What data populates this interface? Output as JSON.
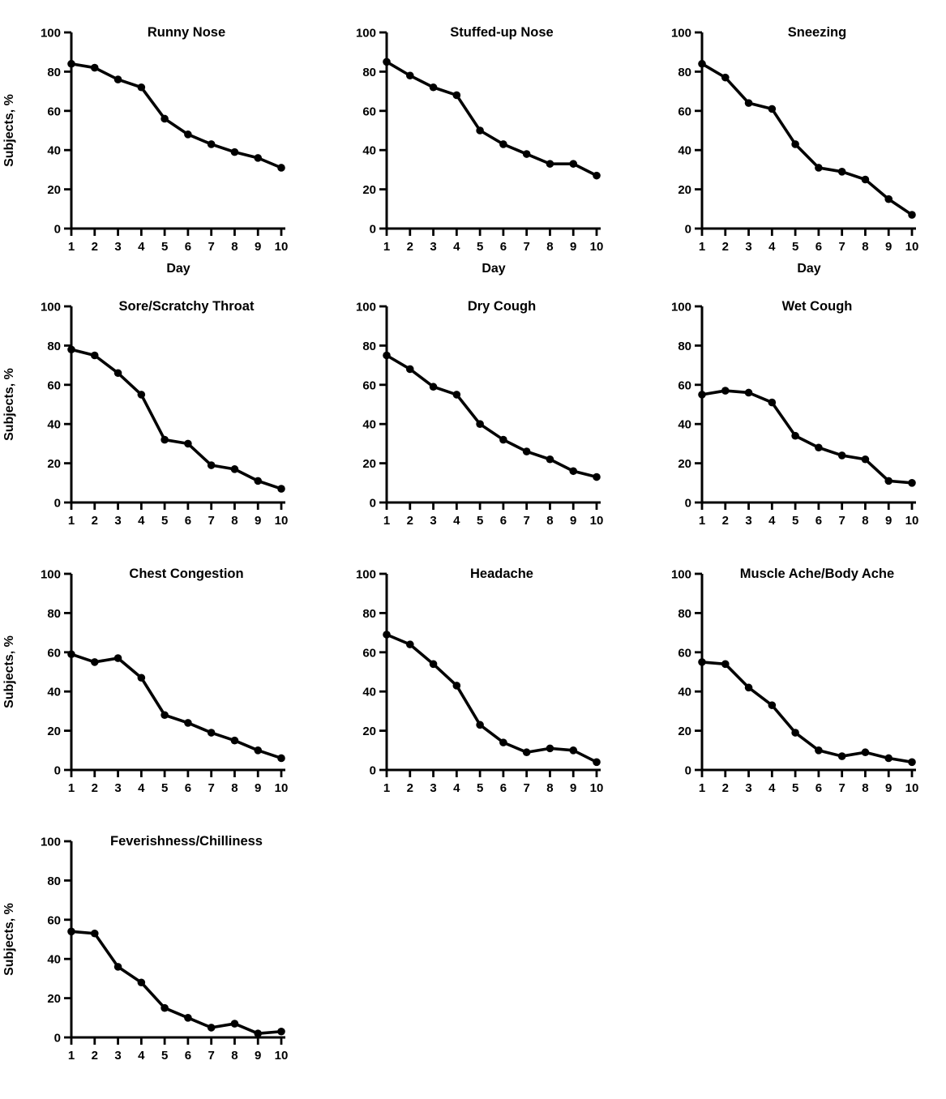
{
  "style": {
    "ink": "#000000",
    "background": "#ffffff"
  },
  "chart_data": [
    {
      "type": "line",
      "title": "Runny Nose",
      "xlabel": "Day",
      "ylabel": "Subjects, %",
      "x": [
        1,
        2,
        3,
        4,
        5,
        6,
        7,
        8,
        9,
        10
      ],
      "values": [
        84,
        82,
        76,
        72,
        56,
        48,
        43,
        39,
        36,
        31
      ],
      "ylim": [
        0,
        100
      ],
      "y_ticks": [
        0,
        20,
        40,
        60,
        80,
        100
      ],
      "grid": false,
      "marker": "circle"
    },
    {
      "type": "line",
      "title": "Stuffed-up Nose",
      "xlabel": "Day",
      "ylabel": "",
      "x": [
        1,
        2,
        3,
        4,
        5,
        6,
        7,
        8,
        9,
        10
      ],
      "values": [
        85,
        78,
        72,
        68,
        50,
        43,
        38,
        33,
        33,
        27
      ],
      "ylim": [
        0,
        100
      ],
      "y_ticks": [
        0,
        20,
        40,
        60,
        80,
        100
      ],
      "grid": false,
      "marker": "circle"
    },
    {
      "type": "line",
      "title": "Sneezing",
      "xlabel": "Day",
      "ylabel": "",
      "x": [
        1,
        2,
        3,
        4,
        5,
        6,
        7,
        8,
        9,
        10
      ],
      "values": [
        84,
        77,
        64,
        61,
        43,
        31,
        29,
        25,
        15,
        7
      ],
      "ylim": [
        0,
        100
      ],
      "y_ticks": [
        0,
        20,
        40,
        60,
        80,
        100
      ],
      "grid": false,
      "marker": "circle"
    },
    {
      "type": "line",
      "title": "Sore/Scratchy Throat",
      "xlabel": "",
      "ylabel": "Subjects, %",
      "x": [
        1,
        2,
        3,
        4,
        5,
        6,
        7,
        8,
        9,
        10
      ],
      "values": [
        78,
        75,
        66,
        55,
        32,
        30,
        19,
        17,
        11,
        7
      ],
      "ylim": [
        0,
        100
      ],
      "y_ticks": [
        0,
        20,
        40,
        60,
        80,
        100
      ],
      "grid": false,
      "marker": "circle"
    },
    {
      "type": "line",
      "title": "Dry Cough",
      "xlabel": "",
      "ylabel": "",
      "x": [
        1,
        2,
        3,
        4,
        5,
        6,
        7,
        8,
        9,
        10
      ],
      "values": [
        75,
        68,
        59,
        55,
        40,
        32,
        26,
        22,
        16,
        13
      ],
      "ylim": [
        0,
        100
      ],
      "y_ticks": [
        0,
        20,
        40,
        60,
        80,
        100
      ],
      "grid": false,
      "marker": "circle"
    },
    {
      "type": "line",
      "title": "Wet Cough",
      "xlabel": "",
      "ylabel": "",
      "x": [
        1,
        2,
        3,
        4,
        5,
        6,
        7,
        8,
        9,
        10
      ],
      "values": [
        55,
        57,
        56,
        51,
        34,
        28,
        24,
        22,
        11,
        10
      ],
      "ylim": [
        0,
        100
      ],
      "y_ticks": [
        0,
        20,
        40,
        60,
        80,
        100
      ],
      "grid": false,
      "marker": "circle"
    },
    {
      "type": "line",
      "title": "Chest Congestion",
      "xlabel": "",
      "ylabel": "Subjects, %",
      "x": [
        1,
        2,
        3,
        4,
        5,
        6,
        7,
        8,
        9,
        10
      ],
      "values": [
        59,
        55,
        57,
        47,
        28,
        24,
        19,
        15,
        10,
        6
      ],
      "ylim": [
        0,
        100
      ],
      "y_ticks": [
        0,
        20,
        40,
        60,
        80,
        100
      ],
      "grid": false,
      "marker": "circle"
    },
    {
      "type": "line",
      "title": "Headache",
      "xlabel": "",
      "ylabel": "",
      "x": [
        1,
        2,
        3,
        4,
        5,
        6,
        7,
        8,
        9,
        10
      ],
      "values": [
        69,
        64,
        54,
        43,
        23,
        14,
        9,
        11,
        10,
        4
      ],
      "ylim": [
        0,
        100
      ],
      "y_ticks": [
        0,
        20,
        40,
        60,
        80,
        100
      ],
      "grid": false,
      "marker": "circle"
    },
    {
      "type": "line",
      "title": "Muscle Ache/Body Ache",
      "xlabel": "",
      "ylabel": "",
      "x": [
        1,
        2,
        3,
        4,
        5,
        6,
        7,
        8,
        9,
        10
      ],
      "values": [
        55,
        54,
        42,
        33,
        19,
        10,
        7,
        9,
        6,
        4
      ],
      "ylim": [
        0,
        100
      ],
      "y_ticks": [
        0,
        20,
        40,
        60,
        80,
        100
      ],
      "grid": false,
      "marker": "circle"
    },
    {
      "type": "line",
      "title": "Feverishness/Chilliness",
      "xlabel": "",
      "ylabel": "Subjects, %",
      "x": [
        1,
        2,
        3,
        4,
        5,
        6,
        7,
        8,
        9,
        10
      ],
      "values": [
        54,
        53,
        36,
        28,
        15,
        10,
        5,
        7,
        2,
        3
      ],
      "ylim": [
        0,
        100
      ],
      "y_ticks": [
        0,
        20,
        40,
        60,
        80,
        100
      ],
      "grid": false,
      "marker": "circle"
    }
  ]
}
